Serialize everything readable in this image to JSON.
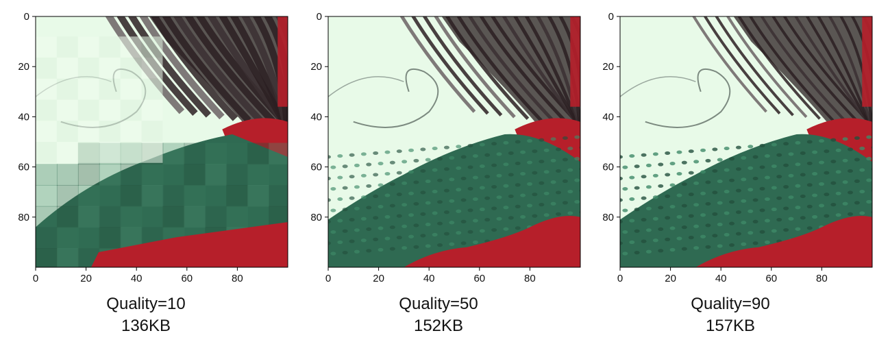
{
  "axis": {
    "y_ticks": [
      "0",
      "20",
      "40",
      "60",
      "80"
    ],
    "x_ticks": [
      "0",
      "20",
      "40",
      "60",
      "80"
    ]
  },
  "colors": {
    "background": "#e8fae8",
    "sweater_green": "#2f6a52",
    "sweater_red": "#b61f2a",
    "hair_dark": "#2b1f22"
  },
  "panels": [
    {
      "quality_label": "Quality=10",
      "size_label": "136KB",
      "style": "blocky"
    },
    {
      "quality_label": "Quality=50",
      "size_label": "152KB",
      "style": "medium"
    },
    {
      "quality_label": "Quality=90",
      "size_label": "157KB",
      "style": "fine"
    }
  ]
}
